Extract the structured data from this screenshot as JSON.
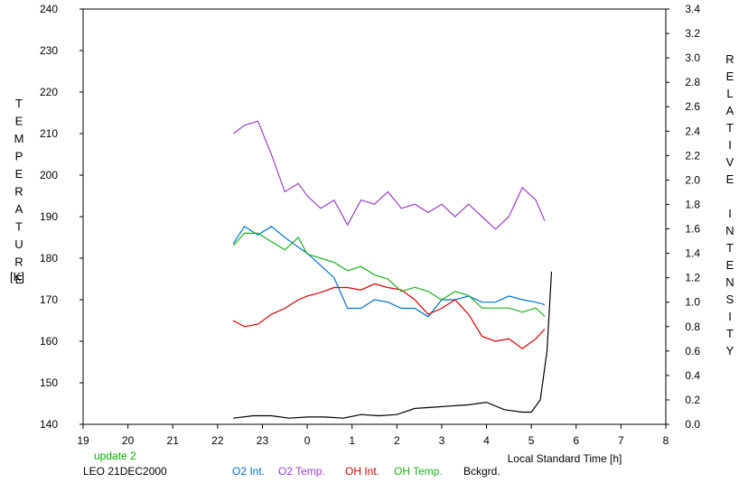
{
  "chart_data": {
    "type": "line",
    "xlabel": "Local Standard Time [h]",
    "ylabel_left": "TEMPERATURE",
    "ylabel_left_unit": "[K]",
    "ylabel_right": "RELATIVE INTENSITY",
    "x_tick_labels": [
      "19",
      "20",
      "21",
      "22",
      "23",
      "0",
      "1",
      "2",
      "3",
      "4",
      "5",
      "6",
      "7",
      "8"
    ],
    "x_range": [
      19,
      32
    ],
    "ylim_left": [
      140,
      240
    ],
    "ylim_right": [
      0.0,
      3.4
    ],
    "y_left_ticks": [
      140,
      150,
      160,
      170,
      180,
      190,
      200,
      210,
      220,
      230,
      240
    ],
    "y_right_ticks": [
      "0.0",
      "0.2",
      "0.4",
      "0.6",
      "0.8",
      "1.0",
      "1.2",
      "1.4",
      "1.6",
      "1.8",
      "2.0",
      "2.2",
      "2.4",
      "2.6",
      "2.8",
      "3.0",
      "3.2",
      "3.4"
    ],
    "grid": false,
    "series": [
      {
        "name": "O2 Int.",
        "axis": "right",
        "color": "#0070d0",
        "x": [
          22.35,
          22.6,
          22.9,
          23.2,
          23.5,
          23.8,
          24.0,
          24.3,
          24.6,
          24.9,
          25.2,
          25.5,
          25.8,
          26.1,
          26.4,
          26.7,
          27.0,
          27.3,
          27.6,
          27.9,
          28.2,
          28.5,
          28.8,
          29.1,
          29.3
        ],
        "y": [
          1.48,
          1.62,
          1.55,
          1.62,
          1.53,
          1.45,
          1.4,
          1.3,
          1.2,
          0.95,
          0.95,
          1.02,
          1.0,
          0.95,
          0.95,
          0.88,
          1.02,
          1.02,
          1.05,
          1.0,
          1.0,
          1.05,
          1.02,
          1.0,
          0.98
        ]
      },
      {
        "name": "O2 Temp.",
        "axis": "left",
        "color": "#9a40c8",
        "x": [
          22.35,
          22.6,
          22.9,
          23.2,
          23.5,
          23.8,
          24.0,
          24.3,
          24.6,
          24.9,
          25.2,
          25.5,
          25.8,
          26.1,
          26.4,
          26.7,
          27.0,
          27.3,
          27.6,
          27.9,
          28.2,
          28.5,
          28.8,
          29.1,
          29.3
        ],
        "y": [
          210,
          212,
          213,
          205,
          196,
          198,
          195,
          192,
          194,
          188,
          194,
          193,
          196,
          192,
          193,
          191,
          193,
          190,
          193,
          190,
          187,
          190,
          197,
          194,
          189
        ]
      },
      {
        "name": "OH Int.",
        "axis": "right",
        "color": "#d00000",
        "x": [
          22.35,
          22.6,
          22.9,
          23.2,
          23.5,
          23.8,
          24.0,
          24.3,
          24.6,
          24.9,
          25.2,
          25.5,
          25.8,
          26.1,
          26.4,
          26.7,
          27.0,
          27.3,
          27.6,
          27.9,
          28.2,
          28.5,
          28.8,
          29.1,
          29.3
        ],
        "y": [
          0.85,
          0.8,
          0.82,
          0.9,
          0.95,
          1.02,
          1.05,
          1.08,
          1.12,
          1.12,
          1.1,
          1.15,
          1.12,
          1.1,
          1.02,
          0.9,
          0.95,
          1.02,
          0.9,
          0.72,
          0.68,
          0.7,
          0.62,
          0.7,
          0.78
        ]
      },
      {
        "name": "OH Temp.",
        "axis": "left",
        "color": "#20b020",
        "x": [
          22.35,
          22.6,
          22.9,
          23.2,
          23.5,
          23.8,
          24.0,
          24.3,
          24.6,
          24.9,
          25.2,
          25.5,
          25.8,
          26.1,
          26.4,
          26.7,
          27.0,
          27.3,
          27.6,
          27.9,
          28.2,
          28.5,
          28.8,
          29.1,
          29.3
        ],
        "y": [
          183,
          186,
          186,
          184,
          182,
          185,
          181,
          180,
          179,
          177,
          178,
          176,
          175,
          172,
          173,
          172,
          170,
          172,
          171,
          168,
          168,
          168,
          167,
          168,
          166
        ]
      },
      {
        "name": "Bckgrd.",
        "axis": "right",
        "color": "#000000",
        "x": [
          22.35,
          22.8,
          23.2,
          23.6,
          24.0,
          24.4,
          24.8,
          25.2,
          25.6,
          26.0,
          26.4,
          26.8,
          27.2,
          27.6,
          28.0,
          28.4,
          28.8,
          29.0,
          29.2,
          29.35,
          29.45
        ],
        "y": [
          0.05,
          0.07,
          0.07,
          0.05,
          0.06,
          0.06,
          0.05,
          0.08,
          0.07,
          0.08,
          0.13,
          0.14,
          0.15,
          0.16,
          0.18,
          0.12,
          0.1,
          0.1,
          0.2,
          0.6,
          1.25
        ]
      }
    ]
  },
  "footer": {
    "update_label": "update 2",
    "station_date": "LEO 21DEC2000"
  },
  "colors": {
    "o2_int": "#0070d0",
    "o2_temp": "#9a40c8",
    "oh_int": "#d00000",
    "oh_temp": "#20b020",
    "bckgrd": "#000000",
    "update_text": "#00b000"
  }
}
